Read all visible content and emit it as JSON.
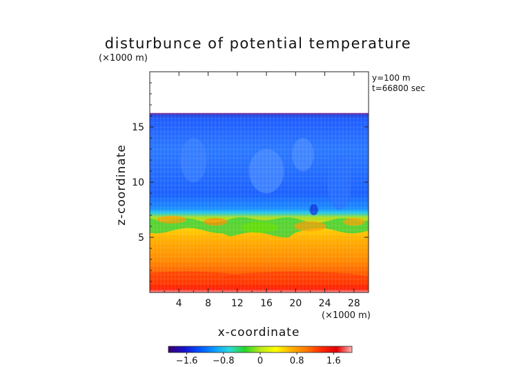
{
  "chart_data": {
    "type": "heatmap",
    "title": "disturbunce of potential temperature",
    "axis_unit_top": "(×1000 m)",
    "axis_unit_bottom": "(×1000 m)",
    "xlabel": "x-coordinate",
    "ylabel": "z-coordinate",
    "info_y": "y=100 m",
    "info_t": "t=66800 sec",
    "xlim": [
      0,
      30
    ],
    "ylim": [
      0,
      20
    ],
    "x_ticks": [
      4,
      8,
      12,
      16,
      20,
      24,
      28
    ],
    "y_ticks": [
      5,
      10,
      15
    ],
    "colorbar": {
      "range": [
        -2,
        2
      ],
      "ticks": [
        -1.6,
        -0.8,
        0,
        0.8,
        1.6
      ],
      "tick_labels": [
        "−1.6",
        "−0.8",
        "0",
        "0.8",
        "1.6"
      ],
      "colors": [
        "#3a0070",
        "#1a10c8",
        "#0050ff",
        "#0a9bff",
        "#2cd9d9",
        "#28d628",
        "#b6e81a",
        "#ffff00",
        "#ffb400",
        "#ff7a00",
        "#ff2a00",
        "#e00000",
        "#ffb4b4"
      ]
    },
    "field": {
      "top_of_data_z": 16.2,
      "layers": [
        {
          "z_from": 0,
          "z_to": 1.2,
          "color": "#ff1a00"
        },
        {
          "z_from": 1.2,
          "z_to": 3.0,
          "color": "#ff7a00"
        },
        {
          "z_from": 3.0,
          "z_to": 5.0,
          "color": "#ffa800"
        },
        {
          "z_from": 5.0,
          "z_to": 6.8,
          "color": "#ffd600"
        },
        {
          "z_from": 6.8,
          "z_to": 7.2,
          "color": "#1aa8ff"
        },
        {
          "z_from": 7.2,
          "z_to": 16.2,
          "color": "#1e6cff"
        }
      ]
    }
  }
}
